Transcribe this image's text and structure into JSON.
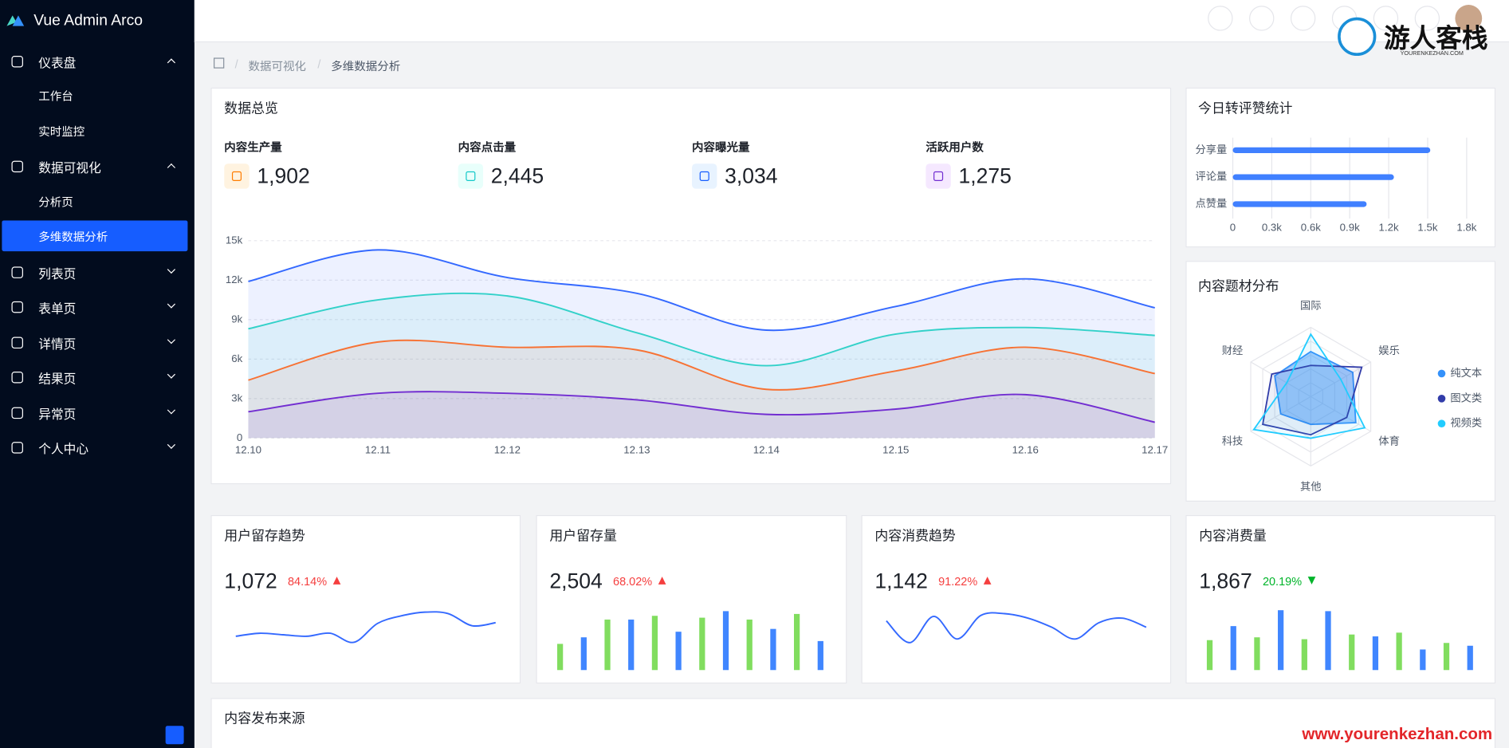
{
  "sidebar": {
    "brand": "Vue Admin Arco",
    "active": [
      1,
      1
    ],
    "menu": [
      {
        "label": "仪表盘",
        "children": [
          "工作台",
          "实时监控"
        ]
      },
      {
        "label": "数据可视化",
        "children": [
          "分析页",
          "多维数据分析"
        ]
      },
      {
        "label": "列表页"
      },
      {
        "label": "表单页"
      },
      {
        "label": "详情页"
      },
      {
        "label": "结果页"
      },
      {
        "label": "异常页"
      },
      {
        "label": "个人中心"
      }
    ]
  },
  "breadcrumb": [
    "数据可视化",
    "多维数据分析"
  ],
  "overview": {
    "title": "数据总览",
    "stats": [
      {
        "label": "内容生产量",
        "value": "1,902",
        "color": "#ff7d00",
        "bg": "#fff3e0"
      },
      {
        "label": "内容点击量",
        "value": "2,445",
        "color": "#14c9c9",
        "bg": "#e8fffb"
      },
      {
        "label": "内容曝光量",
        "value": "3,034",
        "color": "#165dff",
        "bg": "#e8f3ff"
      },
      {
        "label": "活跃用户数",
        "value": "1,275",
        "color": "#722ed1",
        "bg": "#f5e8ff"
      }
    ]
  },
  "chart_data": [
    {
      "type": "area",
      "categories": [
        "12.10",
        "12.11",
        "12.12",
        "12.13",
        "12.14",
        "12.15",
        "12.16",
        "12.17"
      ],
      "ylim": [
        0,
        15000
      ],
      "yticks": [
        0,
        {
          "value": 3000,
          "label": "3k"
        },
        {
          "value": 6000,
          "label": "6k"
        },
        {
          "value": 9000,
          "label": "9k"
        },
        {
          "value": 12000,
          "label": "12k"
        },
        {
          "value": 15000,
          "label": "15k"
        }
      ],
      "grid": true,
      "series": [
        {
          "color": "#3469ff",
          "values": [
            11900,
            14300,
            12200,
            11000,
            8200,
            10000,
            12100,
            9900
          ]
        },
        {
          "color": "#33d1c9",
          "values": [
            8300,
            10500,
            10800,
            8000,
            5500,
            7900,
            8400,
            7800
          ]
        },
        {
          "color": "#f77234",
          "values": [
            4400,
            7300,
            6900,
            6700,
            3700,
            5100,
            6900,
            4900
          ]
        },
        {
          "color": "#722ed1",
          "values": [
            2000,
            3400,
            3400,
            2900,
            1800,
            2200,
            3300,
            1200
          ]
        }
      ]
    },
    {
      "type": "hbar",
      "title": "今日转评赞统计",
      "categories": [
        "分享量",
        "评论量",
        "点赞量"
      ],
      "values": [
        1520,
        1240,
        1030
      ],
      "color": "#4080ff",
      "xlim": [
        0,
        1800
      ],
      "xticks": [
        0,
        {
          "value": 300,
          "label": "0.3k"
        },
        {
          "value": 600,
          "label": "0.6k"
        },
        {
          "value": 900,
          "label": "0.9k"
        },
        {
          "value": 1200,
          "label": "1.2k"
        },
        {
          "value": 1500,
          "label": "1.5k"
        },
        {
          "value": 1800,
          "label": "1.8k"
        }
      ],
      "grid": true
    },
    {
      "type": "radar",
      "title": "内容题材分布",
      "indicators": [
        "国际",
        "娱乐",
        "体育",
        "其他",
        "科技",
        "财经"
      ],
      "rlim": [
        0,
        100
      ],
      "series": [
        {
          "name": "纯文本",
          "color": "#3491fa",
          "values": [
            65,
            70,
            75,
            40,
            50,
            60
          ]
        },
        {
          "name": "图文类",
          "color": "#313ca9",
          "values": [
            45,
            85,
            60,
            55,
            80,
            65
          ]
        },
        {
          "name": "视频类",
          "color": "#21ccff",
          "values": [
            90,
            50,
            90,
            60,
            95,
            40
          ]
        }
      ]
    },
    {
      "type": "line",
      "title": "用户留存趋势",
      "total": "1,072",
      "change": "84.14%",
      "trend": "up",
      "color": "#3469ff",
      "ylim": [
        20,
        80
      ],
      "values": [
        38,
        42,
        40,
        38,
        42,
        30,
        55,
        65,
        70,
        68,
        52,
        56
      ]
    },
    {
      "type": "bar",
      "title": "用户留存量",
      "total": "2,504",
      "change": "68.02%",
      "trend": "up",
      "colors": [
        "#81dd5f",
        "#4086ff"
      ],
      "ylim": [
        0,
        70
      ],
      "values": [
        28,
        35,
        54,
        54,
        58,
        41,
        56,
        63,
        54,
        44,
        60,
        31
      ]
    },
    {
      "type": "line",
      "title": "内容消费趋势",
      "total": "1,142",
      "change": "91.22%",
      "trend": "up",
      "color": "#3469ff",
      "ylim": [
        20,
        70
      ],
      "values": [
        52,
        28,
        57,
        32,
        58,
        60,
        55,
        45,
        32,
        50,
        55,
        45
      ]
    },
    {
      "type": "bar",
      "title": "内容消费量",
      "total": "1,867",
      "change": "20.19%",
      "trend": "down",
      "colors": [
        "#81dd5f",
        "#4086ff"
      ],
      "ylim": [
        0,
        70
      ],
      "values": [
        32,
        47,
        35,
        64,
        33,
        63,
        38,
        36,
        40,
        22,
        29,
        26
      ]
    }
  ],
  "source": {
    "title": "内容发布来源"
  },
  "watermark": {
    "name": "游人客栈",
    "domain": "YOURENKEZHAN.COM",
    "url": "www.yourenkezhan.com"
  }
}
